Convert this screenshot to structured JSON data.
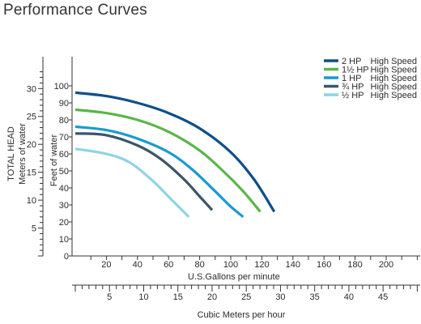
{
  "page": {
    "title": "Performance Curves"
  },
  "chart_data": {
    "type": "line",
    "title": "Performance Curves",
    "xlabel": "U.S.Gallons per minute",
    "ylabel": "Feet of water",
    "xlim": [
      0,
      230
    ],
    "ylim": [
      0,
      110
    ],
    "x_ticks": [
      20,
      40,
      60,
      80,
      100,
      120,
      140,
      160,
      180,
      200
    ],
    "y_ticks": [
      0,
      10,
      20,
      30,
      40,
      50,
      60,
      70,
      80,
      90,
      100
    ],
    "secondary_x": {
      "label": "Cubic Meters per hour",
      "ticks": [
        5,
        10,
        15,
        20,
        25,
        30,
        35,
        40,
        45
      ]
    },
    "secondary_y": {
      "label_line1": "TOTAL HEAD",
      "label_line2": "Meters of water",
      "ticks": [
        5,
        10,
        15,
        20,
        25,
        30
      ]
    },
    "legend_position": "top-right",
    "series": [
      {
        "name": "2 HP",
        "speed": "High Speed",
        "color": "#0d4f8b",
        "points": [
          [
            0,
            96
          ],
          [
            20,
            94
          ],
          [
            40,
            90
          ],
          [
            60,
            84
          ],
          [
            80,
            75
          ],
          [
            100,
            61
          ],
          [
            115,
            45
          ],
          [
            128,
            26
          ]
        ]
      },
      {
        "name": "1½ HP",
        "speed": "High Speed",
        "color": "#5ab64a",
        "points": [
          [
            0,
            86
          ],
          [
            20,
            84
          ],
          [
            40,
            80
          ],
          [
            60,
            73
          ],
          [
            80,
            62
          ],
          [
            95,
            50
          ],
          [
            108,
            38
          ],
          [
            119,
            26
          ]
        ]
      },
      {
        "name": "1 HP",
        "speed": "High Speed",
        "color": "#1a9ad0",
        "points": [
          [
            0,
            76
          ],
          [
            20,
            74
          ],
          [
            40,
            69
          ],
          [
            60,
            61
          ],
          [
            75,
            51
          ],
          [
            90,
            38
          ],
          [
            100,
            29
          ],
          [
            108,
            23
          ]
        ]
      },
      {
        "name": "¾ HP",
        "speed": "High Speed",
        "color": "#3c5568",
        "points": [
          [
            0,
            72
          ],
          [
            20,
            71
          ],
          [
            40,
            65
          ],
          [
            55,
            57
          ],
          [
            70,
            45
          ],
          [
            80,
            35
          ],
          [
            88,
            27
          ]
        ]
      },
      {
        "name": "½ HP",
        "speed": "High Speed",
        "color": "#8fd4e4",
        "points": [
          [
            0,
            63
          ],
          [
            20,
            60
          ],
          [
            35,
            55
          ],
          [
            50,
            44
          ],
          [
            62,
            33
          ],
          [
            73,
            23
          ]
        ]
      }
    ]
  }
}
